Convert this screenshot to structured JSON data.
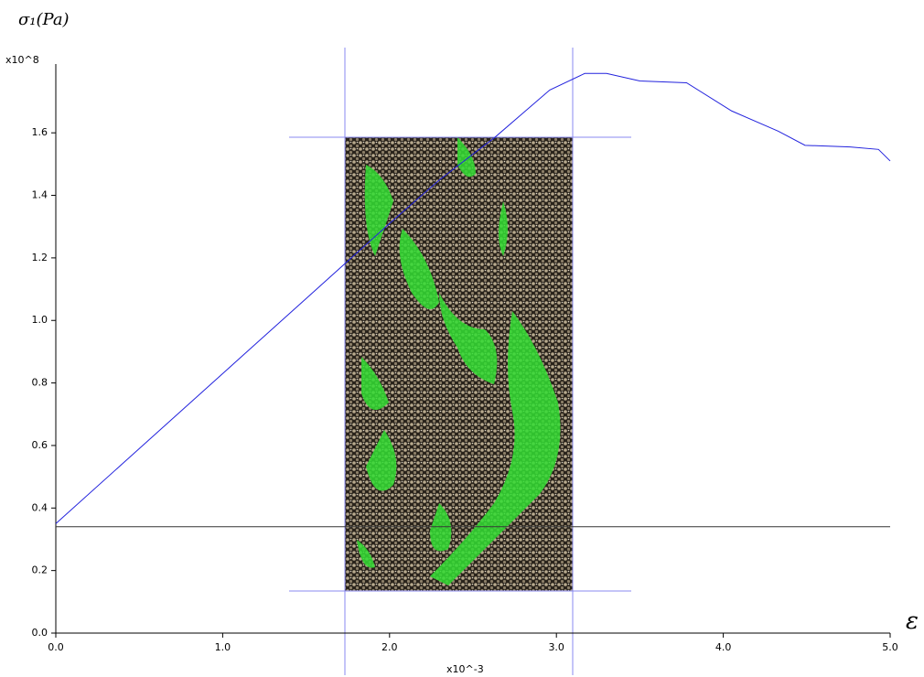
{
  "chart_data": {
    "type": "line",
    "y_label": "σ₁(Pa)",
    "x_label": "ε",
    "y_multiplier": "x10^8",
    "x_multiplier": "x10^-3",
    "x": [
      0,
      0.5,
      1.0,
      1.5,
      2.0,
      2.3,
      2.63,
      2.96,
      3.17,
      3.3,
      3.5,
      3.78,
      4.05,
      4.33,
      4.49,
      4.76,
      4.93,
      5.0
    ],
    "values": [
      0.35,
      0.59,
      0.83,
      1.07,
      1.31,
      1.45,
      1.585,
      1.737,
      1.79,
      1.79,
      1.766,
      1.76,
      1.67,
      1.605,
      1.56,
      1.555,
      1.547,
      1.51
    ],
    "color": "#2222dd",
    "hline": 0.34,
    "xlim": [
      0,
      5.0
    ],
    "ylim": [
      0,
      1.82
    ],
    "xticks": [
      {
        "value": 0,
        "label": "0.0"
      },
      {
        "value": 1,
        "label": "1.0"
      },
      {
        "value": 2,
        "label": "2.0"
      },
      {
        "value": 3,
        "label": "3.0"
      },
      {
        "value": 4,
        "label": "4.0"
      },
      {
        "value": 5,
        "label": "5.0"
      }
    ],
    "yticks": [
      {
        "value": 0,
        "label": "0.0"
      },
      0.2,
      0.4,
      0.6,
      0.8,
      {
        "value": 1,
        "label": "1.0"
      },
      1.2,
      1.4,
      1.6
    ],
    "grid": false
  }
}
